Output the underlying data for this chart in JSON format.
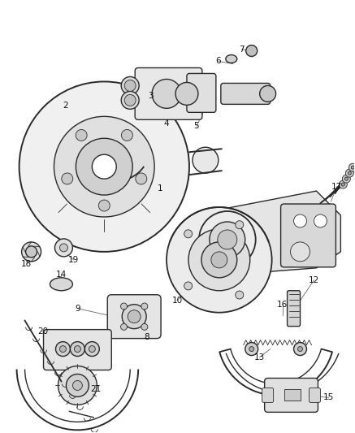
{
  "bg_color": "#ffffff",
  "line_color": "#2a2a2a",
  "label_color": "#111111",
  "fig_width": 4.37,
  "fig_height": 5.33,
  "dpi": 100,
  "label_fontsize": 7.5,
  "leader_color": "#666666",
  "part_linewidth": 1.0,
  "thin_lw": 0.6,
  "thick_lw": 1.4
}
